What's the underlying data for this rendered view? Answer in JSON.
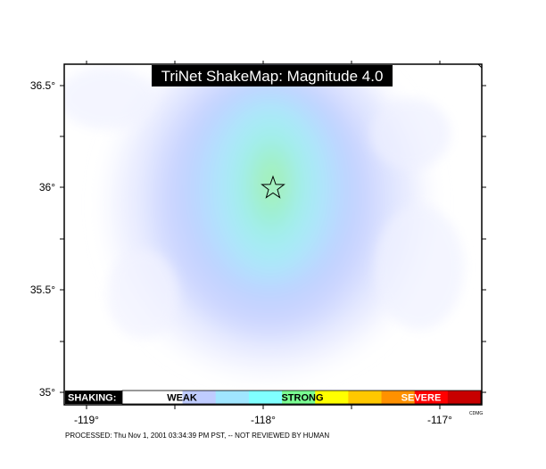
{
  "map": {
    "title": "TriNet ShakeMap: Magnitude 4.0",
    "longitude_ticks": [
      "-119°",
      "-118°",
      "-117°"
    ],
    "latitude_ticks": [
      "36.5°",
      "36°",
      "35.5°",
      "35°"
    ],
    "epicenter_symbol": "star-icon",
    "credit": "CDMG",
    "processed_note": "PROCESSED: Thu Nov 1, 2001 03:34:39 PM PST, -- NOT REVIEWED BY HUMAN"
  },
  "intensity_scale": {
    "label": "SHAKING:",
    "levels": [
      "WEAK",
      "STRONG",
      "SEVERE"
    ],
    "colors": [
      "#ffffff",
      "#bfccff",
      "#a0e6ff",
      "#80ffff",
      "#7aff93",
      "#ffff00",
      "#ffc800",
      "#ff9100",
      "#ff0000",
      "#c80000"
    ]
  }
}
